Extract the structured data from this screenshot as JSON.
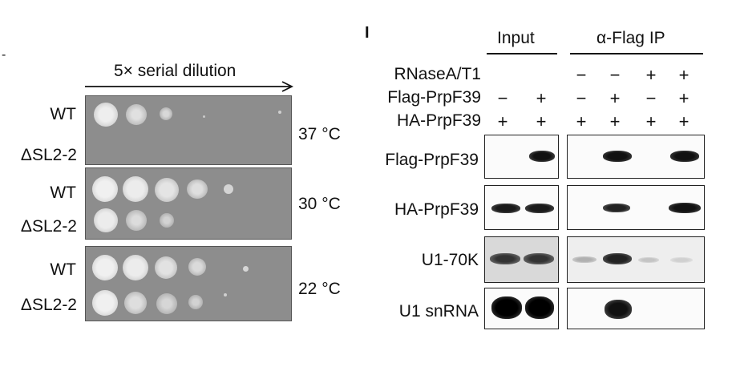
{
  "left_panel": {
    "mark": "-",
    "arrow_label": "5× serial dilution",
    "plates": [
      {
        "rows": [
          "WT",
          "ΔSL2-2"
        ],
        "temperature": "37 °C"
      },
      {
        "rows": [
          "WT",
          "ΔSL2-2"
        ],
        "temperature": "30 °C"
      },
      {
        "rows": [
          "WT",
          "ΔSL2-2"
        ],
        "temperature": "22 °C"
      }
    ]
  },
  "right_panel": {
    "panel_letter": "I",
    "group_headers": [
      "Input",
      "α-Flag IP"
    ],
    "conditions": [
      {
        "label": "RNaseA/T1",
        "signs": [
          "",
          "",
          "−",
          "−",
          "+",
          "+"
        ]
      },
      {
        "label": "Flag-PrpF39",
        "signs": [
          "−",
          "+",
          "−",
          "+",
          "−",
          "+"
        ]
      },
      {
        "label": "HA-PrpF39",
        "signs": [
          "+",
          "+",
          "+",
          "+",
          "+",
          "+"
        ]
      }
    ],
    "blots": [
      {
        "label": "Flag-PrpF39"
      },
      {
        "label": "HA-PrpF39"
      },
      {
        "label": "U1-70K"
      },
      {
        "label": "U1 snRNA"
      }
    ]
  }
}
